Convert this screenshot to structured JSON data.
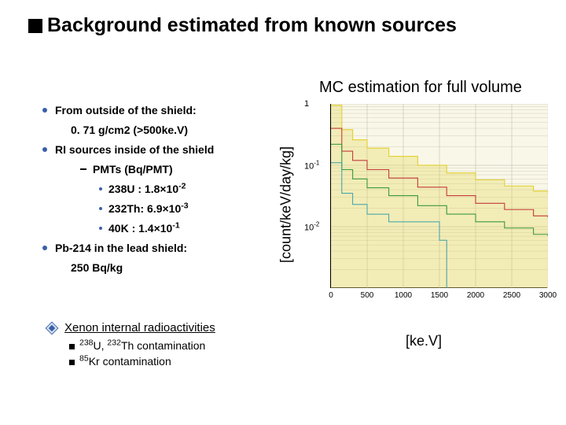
{
  "title": "Background estimated from known sources",
  "subtitle": "MC estimation for full volume",
  "bullets": {
    "b1": "From outside of the shield:",
    "b1_sub": "0. 71 g/cm2  (>500ke.V)",
    "b2": "RI sources inside of the shield",
    "b2_pmts": "PMTs (Bq/PMT)",
    "b2_u": "238U : 1.8×10",
    "b2_u_exp": "-2",
    "b2_th": "232Th: 6.9×10",
    "b2_th_exp": "-3",
    "b2_k": "40K   : 1.4×10",
    "b2_k_exp": "-1",
    "b3": "Pb-214 in the lead shield:",
    "b3_sub": "250 Bq/kg"
  },
  "xenon": {
    "head": "Xenon internal radioactivities",
    "line1_a": "238",
    "line1_b": "U, ",
    "line1_c": "232",
    "line1_d": "Th contamination",
    "line2_a": "85",
    "line2_b": "Kr contamination"
  },
  "chart": {
    "ylabel": "[count/keV/day/kg]",
    "xlabel": "[ke.V]",
    "xlim": [
      0,
      3000
    ],
    "ylim_exp": [
      -3,
      0
    ],
    "xticks": [
      0,
      500,
      1000,
      1500,
      2000,
      2500,
      3000
    ],
    "yticks": [
      {
        "base": "1",
        "exp": ""
      },
      {
        "base": "10",
        "exp": "-1"
      },
      {
        "base": "10",
        "exp": "-2"
      }
    ],
    "plot_bg": "#f9f7e8",
    "grid_color": "#b8b6a6",
    "series": [
      {
        "name": "main",
        "color": "#e3d23b",
        "width": 1.2,
        "fill": 0.28,
        "pts": [
          [
            0,
            0.95
          ],
          [
            150,
            0.38
          ],
          [
            300,
            0.26
          ],
          [
            500,
            0.19
          ],
          [
            800,
            0.14
          ],
          [
            1200,
            0.1
          ],
          [
            1600,
            0.075
          ],
          [
            2000,
            0.058
          ],
          [
            2400,
            0.046
          ],
          [
            2800,
            0.038
          ],
          [
            3000,
            0.034
          ]
        ]
      },
      {
        "name": "red",
        "color": "#c43b3b",
        "width": 1.1,
        "fill": 0,
        "pts": [
          [
            0,
            0.4
          ],
          [
            150,
            0.17
          ],
          [
            300,
            0.12
          ],
          [
            500,
            0.085
          ],
          [
            800,
            0.062
          ],
          [
            1200,
            0.044
          ],
          [
            1600,
            0.032
          ],
          [
            2000,
            0.024
          ],
          [
            2400,
            0.019
          ],
          [
            2800,
            0.015
          ],
          [
            3000,
            0.014
          ]
        ]
      },
      {
        "name": "green",
        "color": "#3b9a3b",
        "width": 1.1,
        "fill": 0,
        "pts": [
          [
            0,
            0.22
          ],
          [
            150,
            0.085
          ],
          [
            300,
            0.06
          ],
          [
            500,
            0.043
          ],
          [
            800,
            0.032
          ],
          [
            1200,
            0.022
          ],
          [
            1600,
            0.016
          ],
          [
            2000,
            0.012
          ],
          [
            2400,
            0.0095
          ],
          [
            2800,
            0.0075
          ],
          [
            3000,
            0.007
          ]
        ]
      },
      {
        "name": "cyan",
        "color": "#3aa0a8",
        "width": 1.0,
        "fill": 0,
        "pts": [
          [
            0,
            0.11
          ],
          [
            150,
            0.035
          ],
          [
            300,
            0.023
          ],
          [
            500,
            0.016
          ],
          [
            800,
            0.012
          ],
          [
            1500,
            0.006
          ],
          [
            1600,
            0.001
          ]
        ]
      }
    ]
  }
}
